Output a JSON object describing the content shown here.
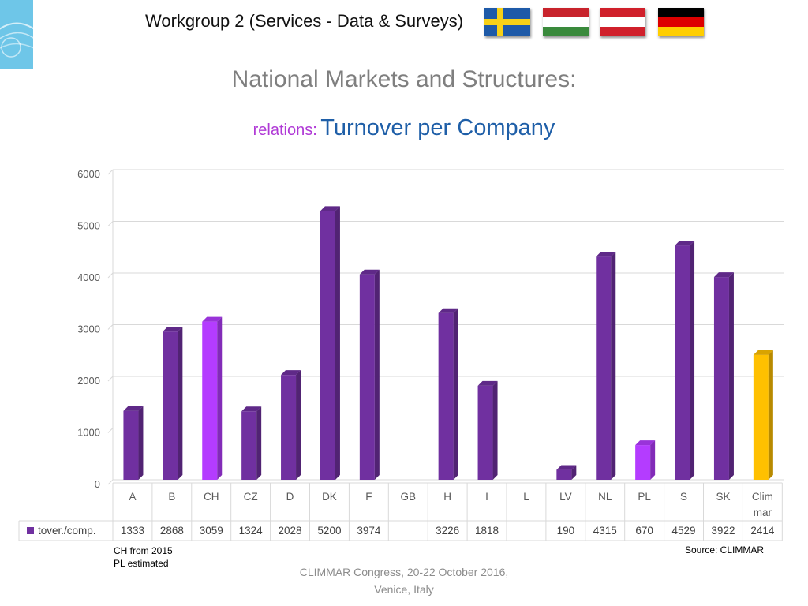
{
  "header": {
    "title": "Workgroup 2 (Services - Data & Surveys)"
  },
  "flags": [
    {
      "name": "sweden-flag-icon"
    },
    {
      "name": "hungary-flag-icon"
    },
    {
      "name": "austria-flag-icon"
    },
    {
      "name": "germany-flag-icon"
    }
  ],
  "slide": {
    "title": "National Markets and Structures:",
    "subtitle_prefix": "relations:",
    "subtitle_main": "Turnover per Company"
  },
  "chart_data": {
    "type": "bar",
    "categories": [
      "A",
      "B",
      "CH",
      "CZ",
      "D",
      "DK",
      "F",
      "GB",
      "H",
      "I",
      "L",
      "LV",
      "NL",
      "PL",
      "S",
      "SK",
      "Clim mar"
    ],
    "series": [
      {
        "name": "tover./comp.",
        "values": [
          1333,
          2868,
          3059,
          1324,
          2028,
          5200,
          3974,
          null,
          3226,
          1818,
          null,
          190,
          4315,
          670,
          4529,
          3922,
          2414
        ]
      }
    ],
    "ylim": [
      0,
      6000
    ],
    "yticks": [
      "0",
      "1000",
      "2000",
      "3000",
      "4000",
      "5000",
      "6000"
    ],
    "grid": true,
    "legend": "data-table",
    "colors": {
      "default": "#7030a0",
      "estimated": "#b43cff",
      "total": "#ffc000",
      "highlight_categories": [
        "CH",
        "PL"
      ],
      "total_category": "Clim mar"
    }
  },
  "notes": {
    "line1": "CH from 2015",
    "line2": "PL estimated"
  },
  "source": "Source: CLIMMAR",
  "footer": {
    "line1": "CLIMMAR Congress, 20-22 October 2016,",
    "line2": "Venice, Italy"
  }
}
